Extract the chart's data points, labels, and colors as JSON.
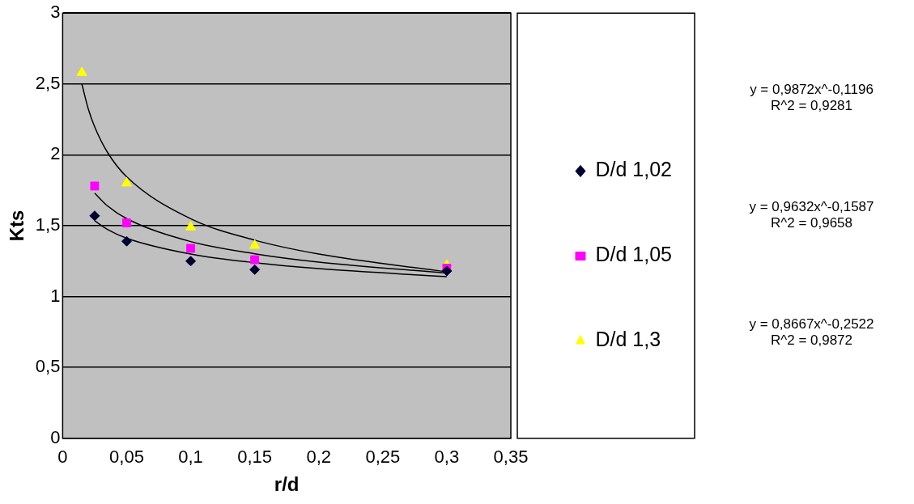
{
  "chart_data": {
    "type": "scatter",
    "xlabel": "r/d",
    "ylabel": "Kts",
    "xlim": [
      0,
      0.35
    ],
    "xticks": [
      0,
      {
        "value": 0.05,
        "label": "0,05"
      },
      {
        "value": 0.1,
        "label": "0,1"
      },
      {
        "value": 0.15,
        "label": "0,15"
      },
      {
        "value": 0.2,
        "label": "0,2"
      },
      {
        "value": 0.25,
        "label": "0,25"
      },
      {
        "value": 0.3,
        "label": "0,3"
      },
      {
        "value": 0.35,
        "label": "0,35"
      }
    ],
    "ylim": [
      0,
      3
    ],
    "yticks": [
      0,
      {
        "value": 0.5,
        "label": "0,5"
      },
      1,
      {
        "value": 1.5,
        "label": "1,5"
      },
      2,
      {
        "value": 2.5,
        "label": "2,5"
      },
      3
    ],
    "grid": "y",
    "legend": "right",
    "series": [
      {
        "name": "D/d 1,02",
        "color": "#000033",
        "marker": "diamond",
        "x": [
          0.025,
          0.05,
          0.1,
          0.15,
          0.3
        ],
        "values": [
          1.57,
          1.39,
          1.25,
          1.19,
          1.18
        ]
      },
      {
        "name": "D/d 1,05",
        "color": "#ff00ff",
        "marker": "square",
        "x": [
          0.025,
          0.05,
          0.1,
          0.15,
          0.3
        ],
        "values": [
          1.78,
          1.52,
          1.34,
          1.26,
          1.2
        ]
      },
      {
        "name": "D/d 1,3",
        "color": "#ffff00",
        "marker": "triangle",
        "x": [
          0.015,
          0.05,
          0.1,
          0.15,
          0.3
        ],
        "values": [
          2.58,
          1.8,
          1.49,
          1.36,
          1.22
        ]
      },
      {
        "type": "line",
        "color": "#000000",
        "marker": "none",
        "x": [
          0.025,
          0.035,
          0.05,
          0.1,
          0.15,
          0.2,
          0.3
        ],
        "values": [
          1.535,
          1.474,
          1.412,
          1.3,
          1.239,
          1.197,
          1.14
        ]
      },
      {
        "type": "line",
        "color": "#000000",
        "marker": "none",
        "x": [
          0.025,
          0.035,
          0.05,
          0.1,
          0.15,
          0.2,
          0.3
        ],
        "values": [
          1.73,
          1.64,
          1.55,
          1.388,
          1.302,
          1.243,
          1.166
        ]
      },
      {
        "type": "line",
        "color": "#000000",
        "marker": "none",
        "x": [
          0.015,
          0.02,
          0.025,
          0.035,
          0.05,
          0.1,
          0.15,
          0.2,
          0.3
        ],
        "values": [
          2.5,
          2.325,
          2.198,
          2.018,
          1.845,
          1.549,
          1.398,
          1.3,
          1.174
        ]
      }
    ],
    "annotations": [
      "y = 0,9872x^-0,1196\nR^2 = 0,9281",
      "y = 0,9632x^-0,1587\nR^2 = 0,9658",
      "y = 0,8667x^-0,2522\nR^2 = 0,9872"
    ]
  }
}
